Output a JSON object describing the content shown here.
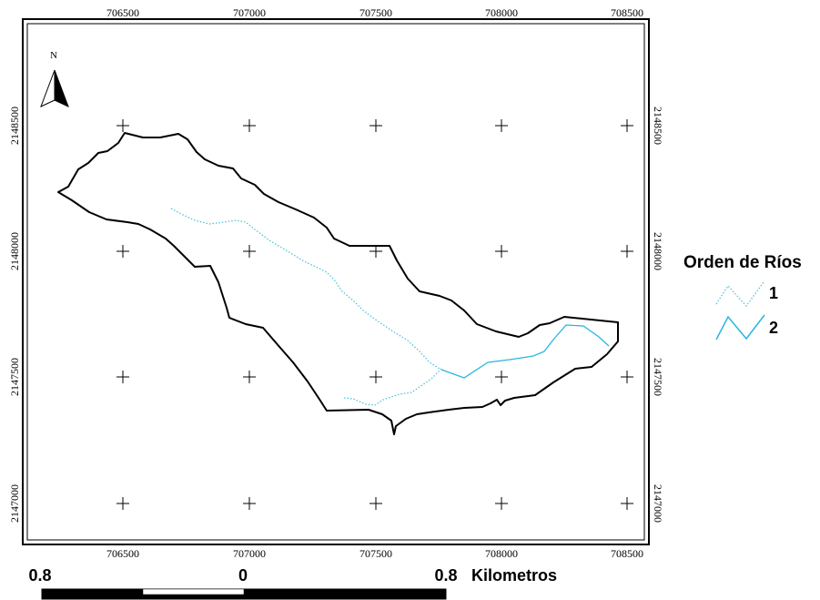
{
  "map": {
    "easting_ticks": [
      "706500",
      "707000",
      "707500",
      "708000",
      "708500"
    ],
    "northing_ticks": [
      "2148500",
      "2148000",
      "2147500",
      "2147000"
    ]
  },
  "north_arrow": {
    "letter": "N"
  },
  "legend": {
    "title": "Orden de Ríos",
    "items": [
      {
        "label": "1",
        "color": "#4fc3d9",
        "style": "dotted"
      },
      {
        "label": "2",
        "color": "#29b6e0",
        "style": "solid"
      }
    ]
  },
  "scale_bar": {
    "left_label": "0.8",
    "center_label": "0",
    "right_label": "0.8",
    "unit_label": "Kilometros"
  },
  "colors": {
    "boundary": "#000000",
    "stream_order_1": "#4fc3d9",
    "stream_order_2": "#29b6e0"
  }
}
